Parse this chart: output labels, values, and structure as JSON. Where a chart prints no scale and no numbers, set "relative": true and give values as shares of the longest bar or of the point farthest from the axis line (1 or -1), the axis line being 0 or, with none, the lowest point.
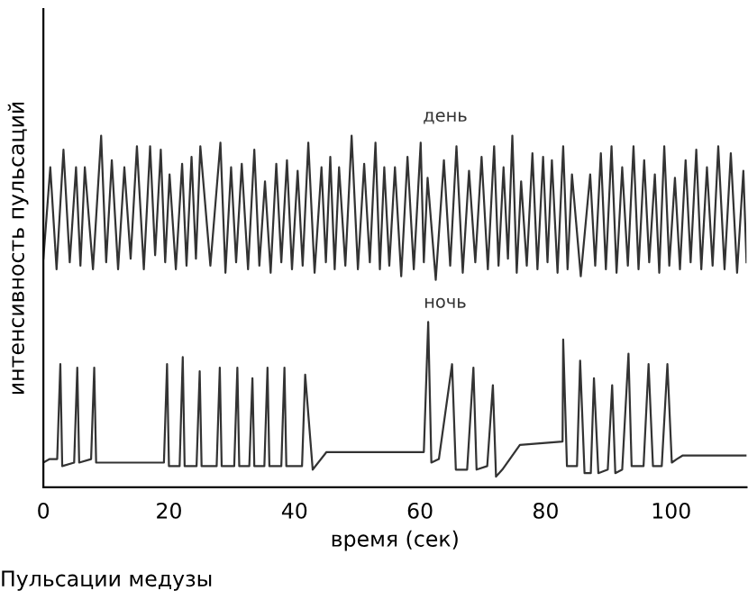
{
  "chart_data": {
    "type": "line",
    "relative": true,
    "xlabel": "время (сек)",
    "ylabel": "интенсивность пульсаций",
    "xlim": [
      0,
      112
    ],
    "xticks": [
      0,
      20,
      40,
      60,
      80,
      100
    ],
    "grid": false,
    "legend": false,
    "marker": "none",
    "line_style": "solid",
    "annotations": [
      "Пульсации медузы"
    ],
    "series": [
      {
        "name": "день",
        "color": "#333333",
        "x": [
          0,
          1.1,
          2.1,
          3.2,
          4.2,
          5.2,
          5.9,
          6.6,
          7.9,
          9.2,
          10.0,
          10.9,
          11.9,
          12.9,
          13.9,
          14.9,
          16.0,
          17.0,
          17.8,
          18.7,
          19.4,
          20.1,
          21.1,
          22.1,
          22.8,
          23.6,
          24.3,
          25.0,
          26.6,
          28.2,
          29.0,
          29.9,
          30.7,
          31.6,
          32.6,
          33.6,
          34.4,
          35.3,
          36.2,
          37.1,
          37.9,
          38.8,
          39.6,
          40.5,
          41.3,
          42.2,
          43.2,
          44.3,
          45.0,
          45.7,
          46.4,
          47.1,
          48.1,
          49.1,
          50.1,
          51.1,
          52.0,
          52.9,
          53.6,
          54.3,
          55.1,
          56.0,
          57.0,
          58.0,
          59.0,
          60.1,
          60.6,
          61.2,
          62.5,
          63.8,
          64.8,
          65.8,
          66.8,
          67.8,
          68.8,
          69.8,
          70.8,
          71.8,
          72.5,
          73.3,
          74.0,
          74.7,
          75.4,
          76.1,
          77.0,
          77.9,
          78.7,
          79.6,
          80.3,
          81.0,
          81.9,
          82.8,
          83.5,
          84.2,
          85.6,
          87.1,
          87.9,
          88.8,
          89.6,
          90.5,
          91.3,
          92.2,
          93.1,
          94.0,
          94.8,
          95.7,
          96.5,
          97.4,
          98.1,
          98.9,
          99.7,
          100.6,
          101.4,
          102.3,
          103.1,
          104.0,
          104.8,
          105.7,
          106.6,
          107.5,
          108.5,
          109.5,
          110.5,
          111.5,
          112
        ],
        "values": [
          0.65,
          0.91,
          0.62,
          0.96,
          0.64,
          0.91,
          0.63,
          0.91,
          0.62,
          1,
          0.64,
          0.93,
          0.62,
          0.91,
          0.65,
          0.97,
          0.62,
          0.97,
          0.66,
          0.96,
          0.64,
          0.89,
          0.62,
          0.92,
          0.63,
          0.94,
          0.65,
          0.97,
          0.63,
          0.98,
          0.61,
          0.91,
          0.64,
          0.92,
          0.62,
          0.96,
          0.63,
          0.87,
          0.61,
          0.92,
          0.64,
          0.93,
          0.62,
          0.9,
          0.63,
          0.98,
          0.61,
          0.91,
          0.64,
          0.94,
          0.62,
          0.91,
          0.63,
          1,
          0.62,
          0.92,
          0.64,
          0.98,
          0.62,
          0.91,
          0.63,
          0.91,
          0.6,
          0.94,
          0.62,
          0.98,
          0.64,
          0.88,
          0.59,
          0.93,
          0.63,
          0.97,
          0.61,
          0.9,
          0.64,
          0.94,
          0.62,
          0.97,
          0.63,
          0.91,
          0.65,
          1,
          0.61,
          0.87,
          0.63,
          0.95,
          0.62,
          0.94,
          0.64,
          0.93,
          0.61,
          0.97,
          0.62,
          0.89,
          0.6,
          0.89,
          0.63,
          0.95,
          0.62,
          0.97,
          0.61,
          0.91,
          0.63,
          0.97,
          0.62,
          0.93,
          0.64,
          0.89,
          0.61,
          0.97,
          0.63,
          0.88,
          0.62,
          0.93,
          0.64,
          0.96,
          0.62,
          0.91,
          0.63,
          0.97,
          0.62,
          0.95,
          0.61,
          0.9,
          0.64
        ]
      },
      {
        "name": "ночь",
        "color": "#333333",
        "x": [
          0,
          1.0,
          2.2,
          2.7,
          3.0,
          4.9,
          5.4,
          5.7,
          7.6,
          8.1,
          8.4,
          19.2,
          19.7,
          20.0,
          21.7,
          22.2,
          22.5,
          24.4,
          24.9,
          25.2,
          27.6,
          28.1,
          28.4,
          30.4,
          30.9,
          31.2,
          32.8,
          33.3,
          33.6,
          35.2,
          35.7,
          36.0,
          37.9,
          38.4,
          38.7,
          41.2,
          41.7,
          42.9,
          45.1,
          60.6,
          61.3,
          61.8,
          63.0,
          65.1,
          65.7,
          67.5,
          68.5,
          69.0,
          70.7,
          71.6,
          72.1,
          73.1,
          75.9,
          82.7,
          82.8,
          83.4,
          85.0,
          85.5,
          86.2,
          87.2,
          87.7,
          88.4,
          89.9,
          90.6,
          91.1,
          92.2,
          93.2,
          93.7,
          95.6,
          96.4,
          97.1,
          98.5,
          99.4,
          100.1,
          100.9,
          101.8,
          112
        ],
        "values": [
          0.07,
          0.08,
          0.08,
          0.35,
          0.06,
          0.07,
          0.34,
          0.07,
          0.08,
          0.34,
          0.07,
          0.07,
          0.35,
          0.06,
          0.06,
          0.37,
          0.06,
          0.06,
          0.33,
          0.06,
          0.06,
          0.34,
          0.06,
          0.06,
          0.34,
          0.06,
          0.06,
          0.31,
          0.06,
          0.06,
          0.34,
          0.06,
          0.06,
          0.34,
          0.06,
          0.06,
          0.32,
          0.05,
          0.1,
          0.1,
          0.47,
          0.07,
          0.08,
          0.35,
          0.05,
          0.05,
          0.34,
          0.05,
          0.06,
          0.29,
          0.03,
          0.05,
          0.12,
          0.13,
          0.42,
          0.06,
          0.06,
          0.36,
          0.04,
          0.04,
          0.31,
          0.04,
          0.05,
          0.29,
          0.04,
          0.05,
          0.38,
          0.06,
          0.06,
          0.35,
          0.06,
          0.06,
          0.35,
          0.07,
          0.08,
          0.09,
          0.09
        ]
      }
    ]
  }
}
